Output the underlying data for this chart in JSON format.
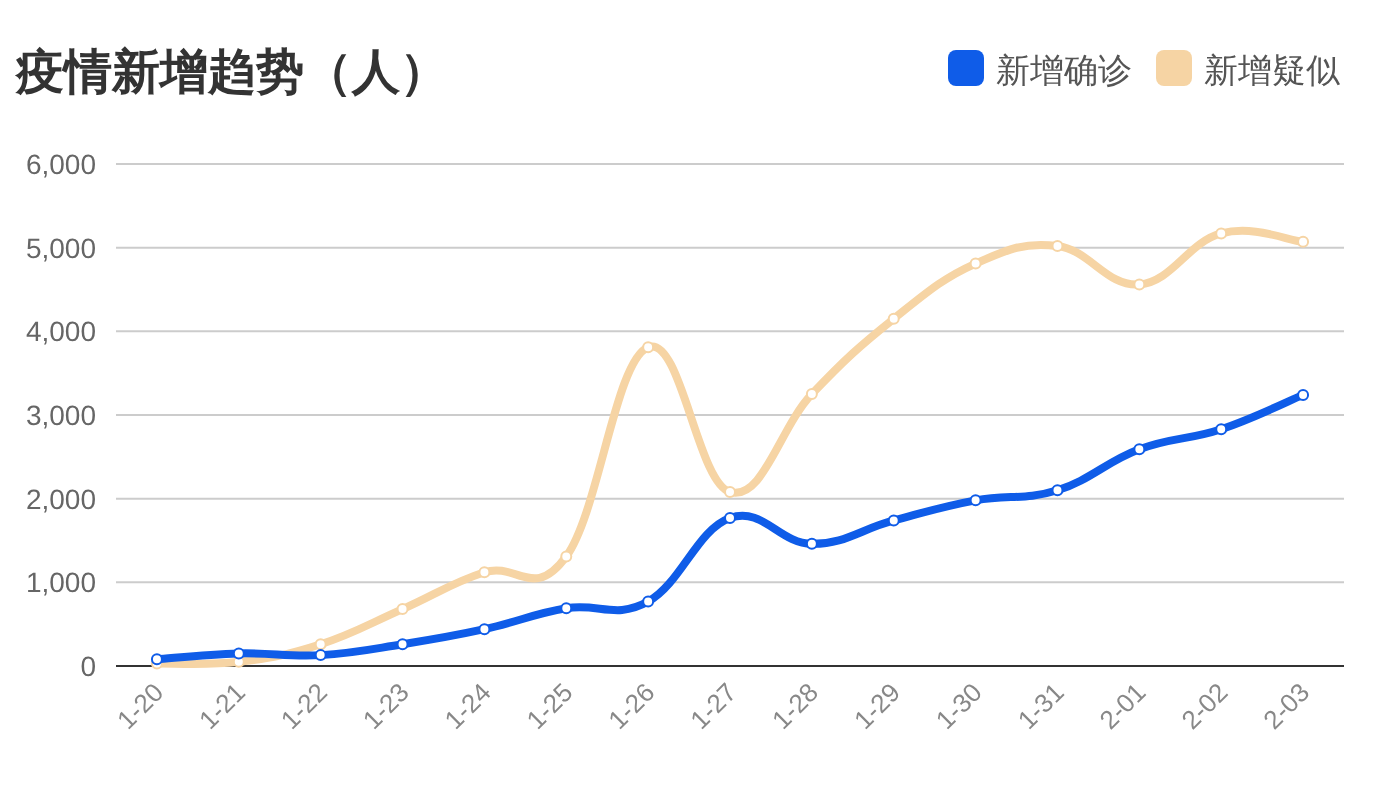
{
  "chart_data": {
    "type": "line",
    "title": "疫情新增趋势（人）",
    "categories": [
      "1-20",
      "1-21",
      "1-22",
      "1-23",
      "1-24",
      "1-25",
      "1-26",
      "1-27",
      "1-28",
      "1-29",
      "1-30",
      "1-31",
      "2-01",
      "2-02",
      "2-03"
    ],
    "series": [
      {
        "name": "新增确诊",
        "color": "#0f5ce8",
        "values": [
          80,
          150,
          130,
          260,
          440,
          690,
          770,
          1770,
          1460,
          1740,
          1980,
          2100,
          2590,
          2830,
          3240
        ]
      },
      {
        "name": "新增疑似",
        "color": "#f6d4a4",
        "values": [
          30,
          50,
          260,
          680,
          1120,
          1310,
          3810,
          2080,
          3250,
          4150,
          4810,
          5020,
          4560,
          5170,
          5070
        ]
      }
    ],
    "ylim": [
      0,
      6000
    ],
    "yticks": [
      {
        "value": 0,
        "label": "0"
      },
      {
        "value": 1000,
        "label": "1,000"
      },
      {
        "value": 2000,
        "label": "2,000"
      },
      {
        "value": 3000,
        "label": "3,000"
      },
      {
        "value": 4000,
        "label": "4,000"
      },
      {
        "value": 5000,
        "label": "5,000"
      },
      {
        "value": 6000,
        "label": "6,000"
      }
    ],
    "grid": "y",
    "legend": "top right",
    "marker": "circle",
    "line_style": "solid"
  }
}
